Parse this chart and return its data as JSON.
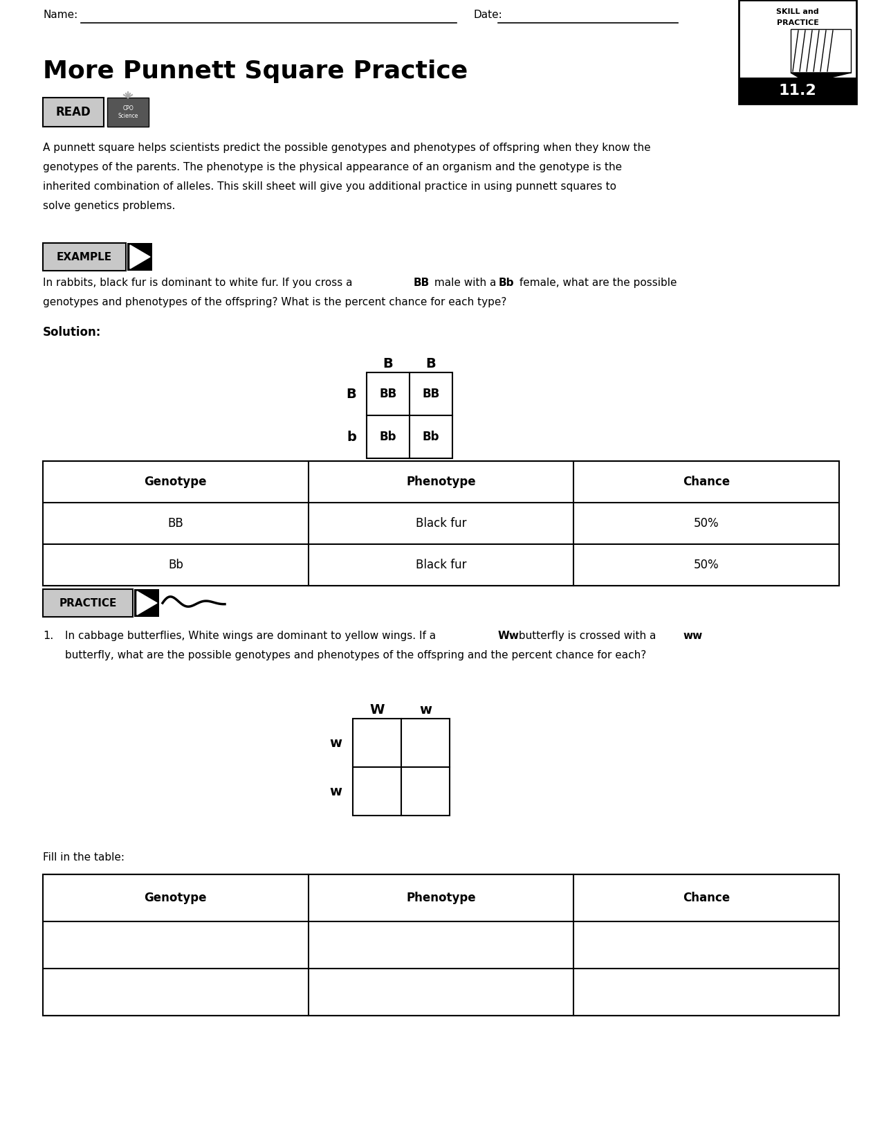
{
  "title": "More Punnett Square Practice",
  "section_number": "11.2",
  "name_label": "Name:",
  "date_label": "Date:",
  "read_label": "READ",
  "example_label": "EXAMPLE",
  "practice_label": "PRACTICE",
  "intro_text_lines": [
    "A punnett square helps scientists predict the possible genotypes and phenotypes of offspring when they know the",
    "genotypes of the parents. The phenotype is the physical appearance of an organism and the genotype is the",
    "inherited combination of alleles. This skill sheet will give you additional practice in using punnett squares to",
    "solve genetics problems."
  ],
  "example_question_line1": "In rabbits, black fur is dominant to white fur. If you cross a ",
  "example_question_bold1": "BB",
  "example_question_mid": " male with a ",
  "example_question_bold2": "Bb",
  "example_question_end": " female, what are the possible",
  "example_question_line2": "genotypes and phenotypes of the offspring? What is the percent chance for each type?",
  "solution_label": "Solution:",
  "punnett1_col_labels": [
    "B",
    "B"
  ],
  "punnett1_row_labels": [
    "B",
    "b"
  ],
  "punnett1_cells": [
    [
      "BB",
      "BB"
    ],
    [
      "Bb",
      "Bb"
    ]
  ],
  "table1_headers": [
    "Genotype",
    "Phenotype",
    "Chance"
  ],
  "table1_rows": [
    [
      "BB",
      "Black fur",
      "50%"
    ],
    [
      "Bb",
      "Black fur",
      "50%"
    ]
  ],
  "practice_question_line1": "In cabbage butterflies, White wings are dominant to yellow wings. If a ",
  "practice_question_bold1": "Ww",
  "practice_question_mid": " butterfly is crossed with a ",
  "practice_question_bold2": "ww",
  "practice_question_line2": "butterfly, what are the possible genotypes and phenotypes of the offspring and the percent chance for each?",
  "punnett2_col_labels": [
    "W",
    "w"
  ],
  "punnett2_row_labels": [
    "w",
    "w"
  ],
  "punnett2_cells": [
    [
      "",
      ""
    ],
    [
      "",
      ""
    ]
  ],
  "fill_in_table_text": "Fill in the table:",
  "table2_headers": [
    "Genotype",
    "Phenotype",
    "Chance"
  ],
  "table2_rows": [
    [
      "",
      "",
      ""
    ],
    [
      "",
      "",
      ""
    ]
  ],
  "bg_color": "#ffffff",
  "text_color": "#000000",
  "gray_bg": "#c8c8c8"
}
